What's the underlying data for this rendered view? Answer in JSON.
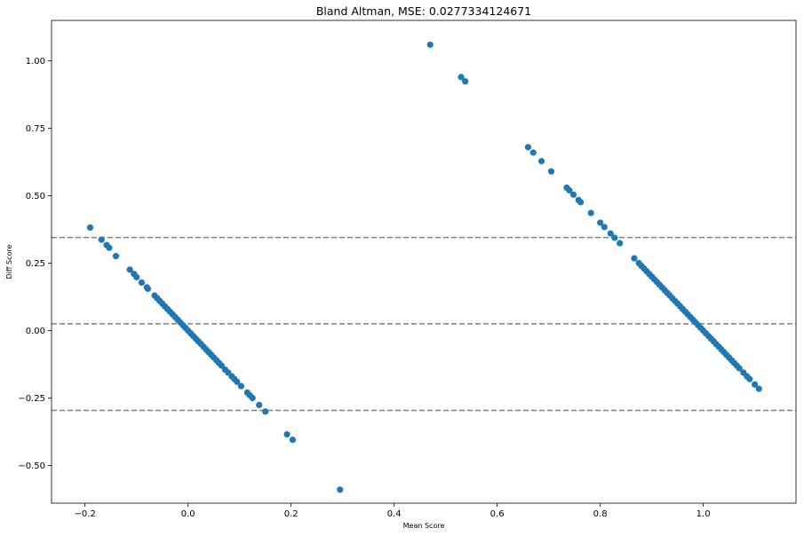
{
  "chart_data": {
    "type": "scatter",
    "title": "Bland Altman, MSE: 0.0277334124671",
    "xlabel": "Mean Score",
    "ylabel": "Diff Score",
    "xlim": [
      -0.265,
      1.18
    ],
    "ylim": [
      -0.64,
      1.15
    ],
    "x_ticks": [
      -0.2,
      0.0,
      0.2,
      0.4,
      0.6,
      0.8,
      1.0
    ],
    "x_tick_labels": [
      "−0.2",
      "0.0",
      "0.2",
      "0.4",
      "0.6",
      "0.8",
      "1.0"
    ],
    "y_ticks": [
      -0.5,
      -0.25,
      0.0,
      0.25,
      0.5,
      0.75,
      1.0
    ],
    "y_tick_labels": [
      "−0.50",
      "−0.25",
      "0.00",
      "0.25",
      "0.50",
      "0.75",
      "1.00"
    ],
    "grid": false,
    "reference_lines": [
      0.345,
      0.025,
      -0.296
    ],
    "colors": {
      "points": "#1f77b4",
      "reference_lines": "#808080"
    },
    "points": [
      [
        -0.19,
        0.382
      ],
      [
        -0.168,
        0.337
      ],
      [
        -0.158,
        0.317
      ],
      [
        -0.153,
        0.307
      ],
      [
        -0.14,
        0.276
      ],
      [
        -0.113,
        0.226
      ],
      [
        -0.105,
        0.21
      ],
      [
        -0.1,
        0.198
      ],
      [
        -0.09,
        0.178
      ],
      [
        -0.08,
        0.16
      ],
      [
        -0.078,
        0.155
      ],
      [
        -0.065,
        0.13
      ],
      [
        -0.06,
        0.12
      ],
      [
        -0.055,
        0.11
      ],
      [
        -0.05,
        0.1
      ],
      [
        -0.045,
        0.09
      ],
      [
        -0.04,
        0.08
      ],
      [
        -0.035,
        0.07
      ],
      [
        -0.03,
        0.06
      ],
      [
        -0.025,
        0.05
      ],
      [
        -0.02,
        0.04
      ],
      [
        -0.015,
        0.03
      ],
      [
        -0.01,
        0.02
      ],
      [
        -0.005,
        0.01
      ],
      [
        0.0,
        0.0
      ],
      [
        0.005,
        -0.01
      ],
      [
        0.01,
        -0.02
      ],
      [
        0.015,
        -0.03
      ],
      [
        0.02,
        -0.04
      ],
      [
        0.025,
        -0.05
      ],
      [
        0.03,
        -0.06
      ],
      [
        0.035,
        -0.07
      ],
      [
        0.04,
        -0.08
      ],
      [
        0.045,
        -0.09
      ],
      [
        0.05,
        -0.1
      ],
      [
        0.055,
        -0.11
      ],
      [
        0.06,
        -0.12
      ],
      [
        0.065,
        -0.13
      ],
      [
        0.072,
        -0.145
      ],
      [
        0.078,
        -0.156
      ],
      [
        0.085,
        -0.17
      ],
      [
        0.09,
        -0.18
      ],
      [
        0.095,
        -0.19
      ],
      [
        0.103,
        -0.206
      ],
      [
        0.115,
        -0.23
      ],
      [
        0.12,
        -0.24
      ],
      [
        0.125,
        -0.25
      ],
      [
        0.138,
        -0.276
      ],
      [
        0.15,
        -0.3
      ],
      [
        0.192,
        -0.385
      ],
      [
        0.203,
        -0.405
      ],
      [
        0.295,
        -0.59
      ],
      [
        0.47,
        1.06
      ],
      [
        0.53,
        0.94
      ],
      [
        0.538,
        0.924
      ],
      [
        0.66,
        0.68
      ],
      [
        0.67,
        0.66
      ],
      [
        0.686,
        0.628
      ],
      [
        0.705,
        0.59
      ],
      [
        0.735,
        0.53
      ],
      [
        0.74,
        0.52
      ],
      [
        0.748,
        0.504
      ],
      [
        0.758,
        0.484
      ],
      [
        0.762,
        0.476
      ],
      [
        0.782,
        0.436
      ],
      [
        0.8,
        0.4
      ],
      [
        0.808,
        0.384
      ],
      [
        0.82,
        0.36
      ],
      [
        0.828,
        0.344
      ],
      [
        0.838,
        0.324
      ],
      [
        0.866,
        0.268
      ],
      [
        0.875,
        0.25
      ],
      [
        0.88,
        0.24
      ],
      [
        0.885,
        0.23
      ],
      [
        0.89,
        0.22
      ],
      [
        0.895,
        0.21
      ],
      [
        0.9,
        0.2
      ],
      [
        0.905,
        0.19
      ],
      [
        0.91,
        0.18
      ],
      [
        0.915,
        0.17
      ],
      [
        0.92,
        0.16
      ],
      [
        0.925,
        0.15
      ],
      [
        0.93,
        0.14
      ],
      [
        0.935,
        0.13
      ],
      [
        0.94,
        0.12
      ],
      [
        0.945,
        0.11
      ],
      [
        0.95,
        0.1
      ],
      [
        0.955,
        0.09
      ],
      [
        0.96,
        0.08
      ],
      [
        0.965,
        0.07
      ],
      [
        0.97,
        0.06
      ],
      [
        0.975,
        0.05
      ],
      [
        0.98,
        0.04
      ],
      [
        0.985,
        0.03
      ],
      [
        0.99,
        0.02
      ],
      [
        0.995,
        0.01
      ],
      [
        1.0,
        0.0
      ],
      [
        1.005,
        -0.01
      ],
      [
        1.01,
        -0.02
      ],
      [
        1.015,
        -0.03
      ],
      [
        1.02,
        -0.04
      ],
      [
        1.025,
        -0.05
      ],
      [
        1.03,
        -0.06
      ],
      [
        1.035,
        -0.07
      ],
      [
        1.04,
        -0.08
      ],
      [
        1.045,
        -0.09
      ],
      [
        1.05,
        -0.1
      ],
      [
        1.055,
        -0.11
      ],
      [
        1.06,
        -0.12
      ],
      [
        1.065,
        -0.13
      ],
      [
        1.07,
        -0.14
      ],
      [
        1.078,
        -0.156
      ],
      [
        1.085,
        -0.17
      ],
      [
        1.09,
        -0.18
      ],
      [
        1.1,
        -0.2
      ],
      [
        1.108,
        -0.216
      ]
    ]
  }
}
